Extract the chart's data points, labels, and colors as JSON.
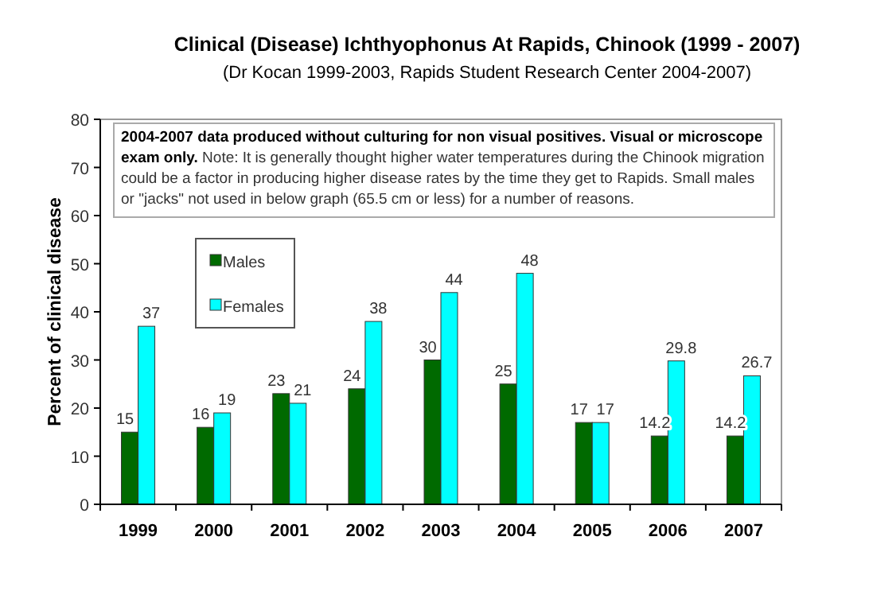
{
  "chart_data": {
    "type": "bar",
    "title": "Clinical (Disease) Ichthyophonus  At Rapids, Chinook (1999 - 2007)",
    "subtitle": "(Dr Kocan 1999-2003, Rapids Student Research Center 2004-2007)",
    "ylabel": "Percent of clinical disease",
    "annotations": [
      "2004-2007 data produced without culturing for non visual positives. Visual or microscope exam only.",
      "Note: It is generally thought higher water temperatures during the Chinook migration could be a factor in producing higher disease rates by the time they get to Rapids. Small males or \"jacks\" not used in below graph (65.5 cm or less) for a number of reasons."
    ],
    "categories": [
      "1999",
      "2000",
      "2001",
      "2002",
      "2003",
      "2004",
      "2005",
      "2006",
      "2007"
    ],
    "series": [
      {
        "name": "Males",
        "color": "#006a00",
        "values": [
          15,
          16,
          23,
          24,
          30,
          25,
          17,
          14.2,
          14.2
        ]
      },
      {
        "name": "Females",
        "color": "#00ffff",
        "values": [
          37,
          19,
          21,
          38,
          44,
          48,
          17,
          29.8,
          26.7
        ]
      }
    ],
    "ylim": [
      0,
      80
    ],
    "yticks": [
      0,
      10,
      20,
      30,
      40,
      50,
      60,
      70,
      80
    ],
    "grid": false,
    "legend": "top left",
    "data_labels": true
  }
}
